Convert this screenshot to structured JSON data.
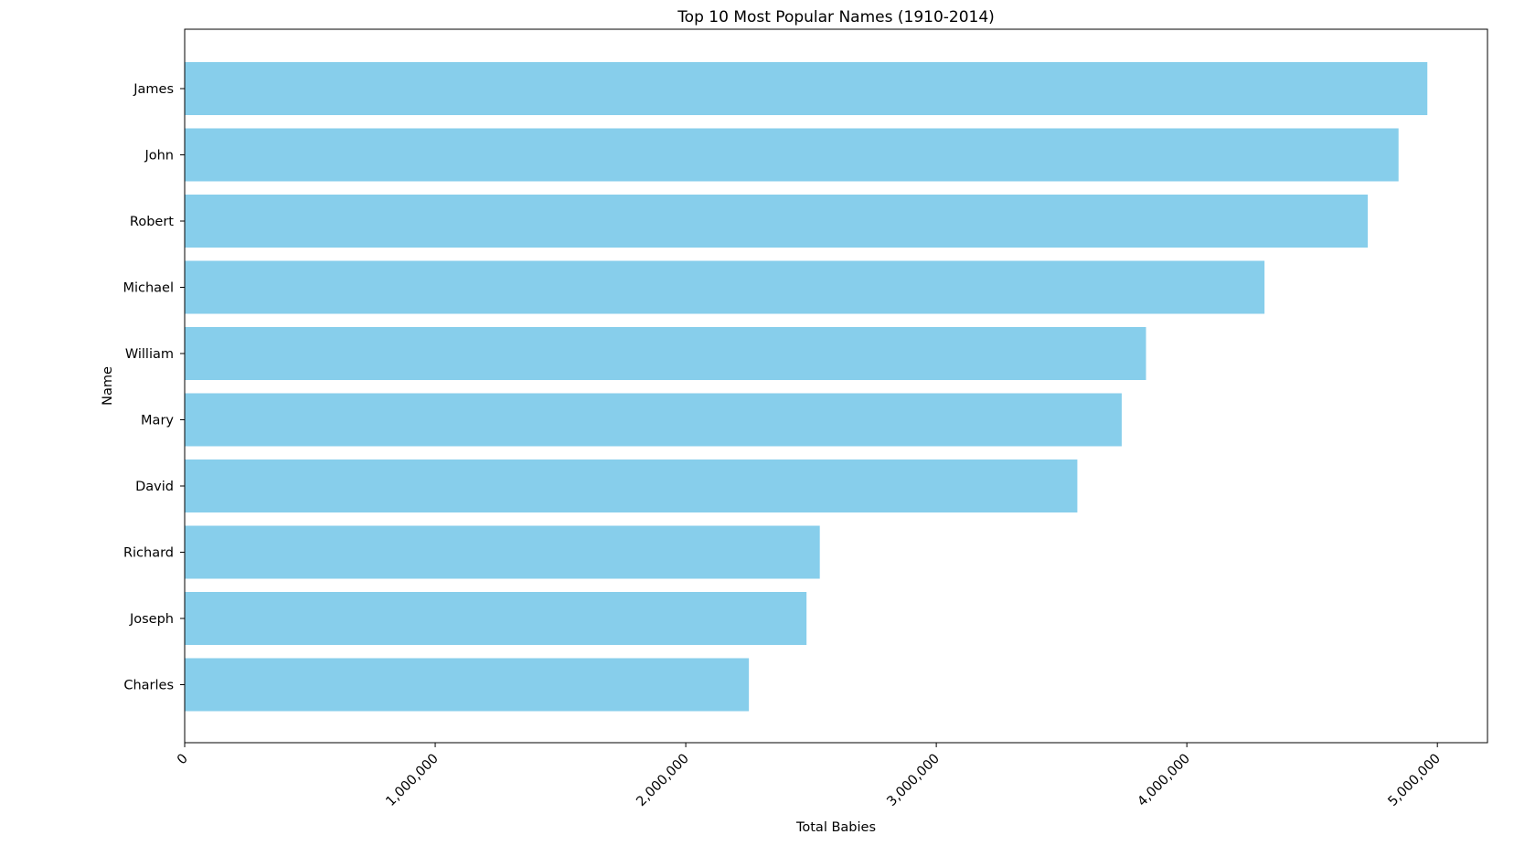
{
  "chart_data": {
    "type": "bar",
    "orientation": "horizontal",
    "title": "Top 10 Most Popular Names (1910-2014)",
    "xlabel": "Total Babies",
    "ylabel": "Name",
    "categories": [
      "James",
      "John",
      "Robert",
      "Michael",
      "William",
      "Mary",
      "David",
      "Richard",
      "Joseph",
      "Charles"
    ],
    "values": [
      4960000,
      4845000,
      4722000,
      4310000,
      3837000,
      3740000,
      3563000,
      2535000,
      2482000,
      2252000
    ],
    "xlim": [
      0,
      5200000
    ],
    "x_ticks": [
      0,
      1000000,
      2000000,
      3000000,
      4000000,
      5000000
    ],
    "x_tick_labels": [
      "0",
      "1,000,000",
      "2,000,000",
      "3,000,000",
      "4,000,000",
      "5,000,000"
    ],
    "bar_color": "#87ceeb",
    "grid": false,
    "legend": "none"
  }
}
